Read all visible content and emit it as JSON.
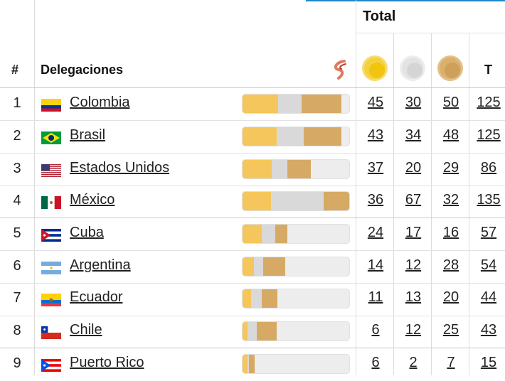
{
  "header": {
    "total_label": "Total",
    "rank_label": "#",
    "delegations_label": "Delegaciones",
    "total_short_label": "T",
    "medal_icons": [
      "gold-medal-icon",
      "silver-medal-icon",
      "bronze-medal-icon"
    ],
    "logo_icon": "games-logo-icon"
  },
  "colors": {
    "gold": "#f5c65c",
    "silver": "#d9d9d9",
    "bronze": "#d6aa65",
    "accent": "#1e88c8"
  },
  "rows": [
    {
      "rank": "1",
      "name": "Colombia",
      "flag": "flag-colombia-icon",
      "gold": "45",
      "silver": "30",
      "bronze": "50",
      "total": "125"
    },
    {
      "rank": "2",
      "name": "Brasil",
      "flag": "flag-brazil-icon",
      "gold": "43",
      "silver": "34",
      "bronze": "48",
      "total": "125"
    },
    {
      "rank": "3",
      "name": "Estados Unidos",
      "flag": "flag-usa-icon",
      "gold": "37",
      "silver": "20",
      "bronze": "29",
      "total": "86"
    },
    {
      "rank": "4",
      "name": "México",
      "flag": "flag-mexico-icon",
      "gold": "36",
      "silver": "67",
      "bronze": "32",
      "total": "135"
    },
    {
      "rank": "5",
      "name": "Cuba",
      "flag": "flag-cuba-icon",
      "gold": "24",
      "silver": "17",
      "bronze": "16",
      "total": "57"
    },
    {
      "rank": "6",
      "name": "Argentina",
      "flag": "flag-argentina-icon",
      "gold": "14",
      "silver": "12",
      "bronze": "28",
      "total": "54"
    },
    {
      "rank": "7",
      "name": "Ecuador",
      "flag": "flag-ecuador-icon",
      "gold": "11",
      "silver": "13",
      "bronze": "20",
      "total": "44"
    },
    {
      "rank": "8",
      "name": "Chile",
      "flag": "flag-chile-icon",
      "gold": "6",
      "silver": "12",
      "bronze": "25",
      "total": "43"
    },
    {
      "rank": "9",
      "name": "Puerto Rico",
      "flag": "flag-puerto-rico-icon",
      "gold": "6",
      "silver": "2",
      "bronze": "7",
      "total": "15"
    }
  ]
}
